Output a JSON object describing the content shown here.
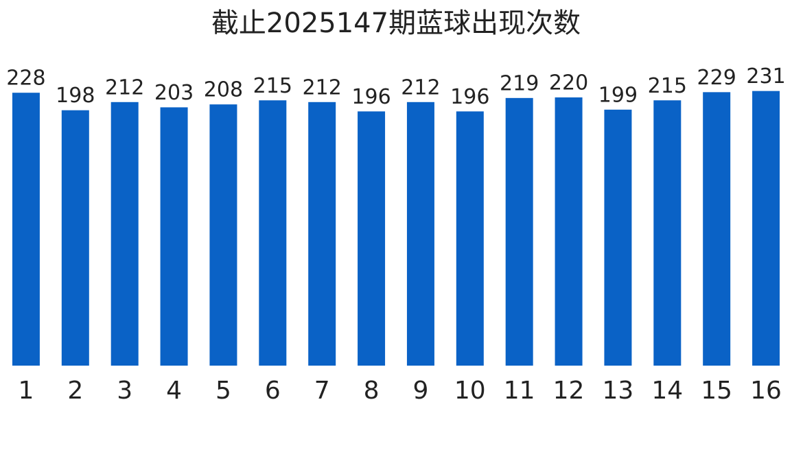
{
  "chart_data": {
    "type": "bar",
    "title": "截止2025147期蓝球出现次数",
    "categories": [
      "1",
      "2",
      "3",
      "4",
      "5",
      "6",
      "7",
      "8",
      "9",
      "10",
      "11",
      "12",
      "13",
      "14",
      "15",
      "16"
    ],
    "values": [
      228,
      198,
      212,
      203,
      208,
      215,
      212,
      196,
      212,
      196,
      219,
      220,
      199,
      215,
      229,
      231
    ],
    "color": "#0a62c6",
    "ylim": [
      -240,
      240
    ]
  }
}
